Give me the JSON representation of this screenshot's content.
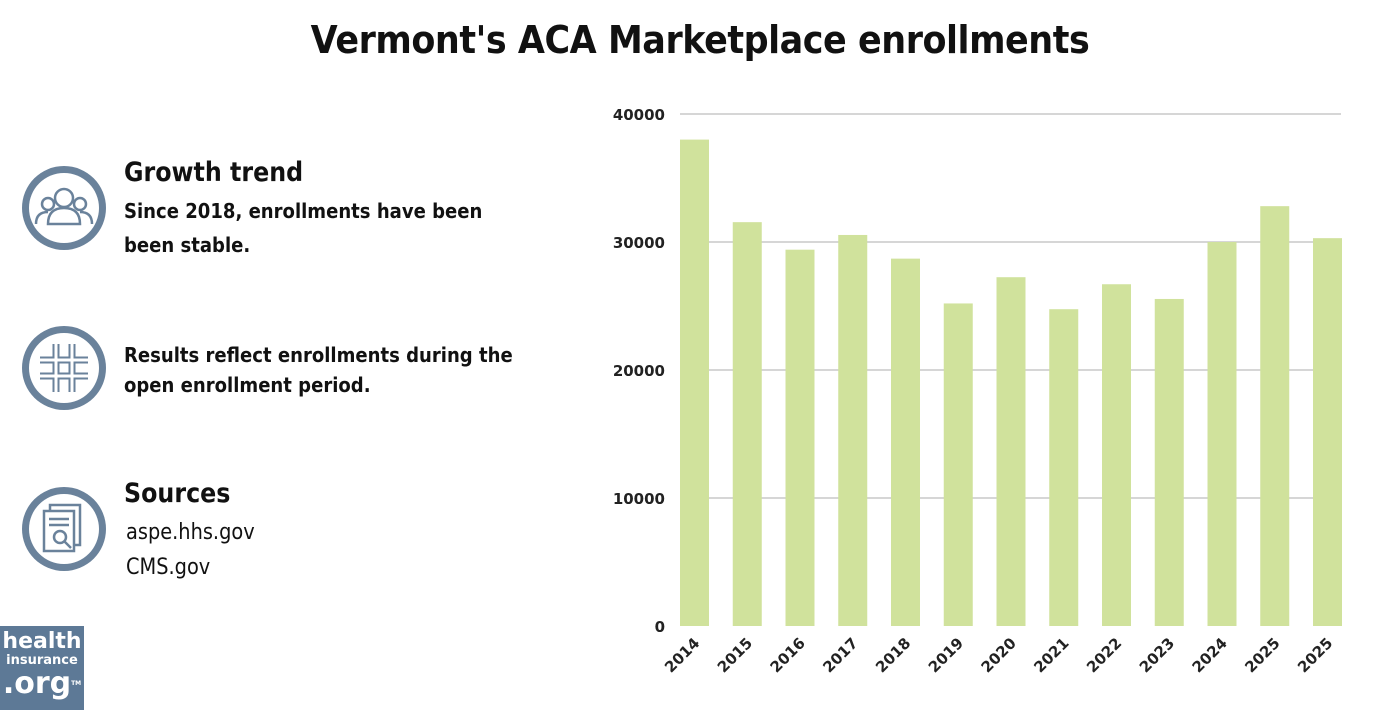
{
  "title": "Vermont's ACA Marketplace enrollments",
  "notes": [
    {
      "icon": "people-icon",
      "heading": "Growth trend",
      "lines": [
        "Since 2018, enrollments have been",
        "been stable."
      ]
    },
    {
      "icon": "hashtag-icon",
      "heading": "",
      "lines": [
        "Results reflect enrollments during the",
        "open enrollment period."
      ]
    },
    {
      "icon": "document-search-icon",
      "heading": "Sources",
      "lines": [
        "aspe.hhs.gov",
        "CMS.gov"
      ]
    }
  ],
  "logo": {
    "line1": "health",
    "line2": "insurance",
    "line3": ".org",
    "tm": "TM"
  },
  "chart_data": {
    "type": "bar",
    "title": "Vermont's ACA Marketplace enrollments",
    "xlabel": "",
    "ylabel": "",
    "categories": [
      "2014",
      "2015",
      "2016",
      "2017",
      "2018",
      "2019",
      "2020",
      "2021",
      "2022",
      "2023",
      "2024",
      "2025",
      "2025"
    ],
    "values": [
      38000,
      31550,
      29400,
      30550,
      28700,
      25200,
      27250,
      24750,
      26700,
      25550,
      30000,
      32800,
      30300
    ],
    "ylim": [
      0,
      40000
    ],
    "yticks": [
      "0",
      "10000",
      "20000",
      "30000",
      "40000"
    ],
    "grid": true,
    "bar_color": "#d0e29c",
    "grid_color": "#c8c8c8"
  }
}
